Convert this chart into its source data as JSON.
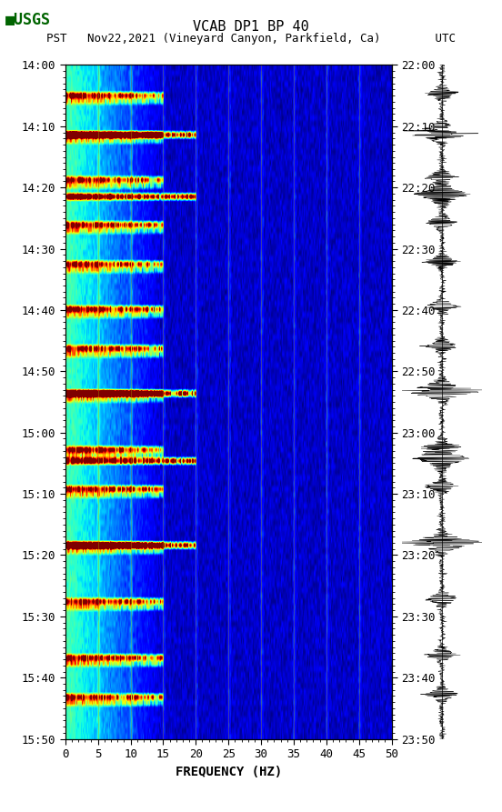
{
  "title_line1": "VCAB DP1 BP 40",
  "title_line2": "PST   Nov22,2021 (Vineyard Canyon, Parkfield, Ca)        UTC",
  "xlabel": "FREQUENCY (HZ)",
  "left_yticks": [
    "14:00",
    "14:10",
    "14:20",
    "14:30",
    "14:40",
    "14:50",
    "15:00",
    "15:10",
    "15:20",
    "15:30",
    "15:40",
    "15:50"
  ],
  "right_yticks": [
    "22:00",
    "22:10",
    "22:20",
    "22:30",
    "22:40",
    "22:50",
    "23:00",
    "23:10",
    "23:20",
    "23:30",
    "23:40",
    "23:50"
  ],
  "xticks": [
    0,
    5,
    10,
    15,
    20,
    25,
    30,
    35,
    40,
    45,
    50
  ],
  "freq_min": 0,
  "freq_max": 50,
  "time_steps": 120,
  "freq_steps": 300,
  "bg_color": "#000080",
  "colormap": "jet",
  "fig_width": 5.52,
  "fig_height": 8.93,
  "usgs_green": "#006400",
  "grid_color": "#8B8B00",
  "grid_alpha": 0.6
}
